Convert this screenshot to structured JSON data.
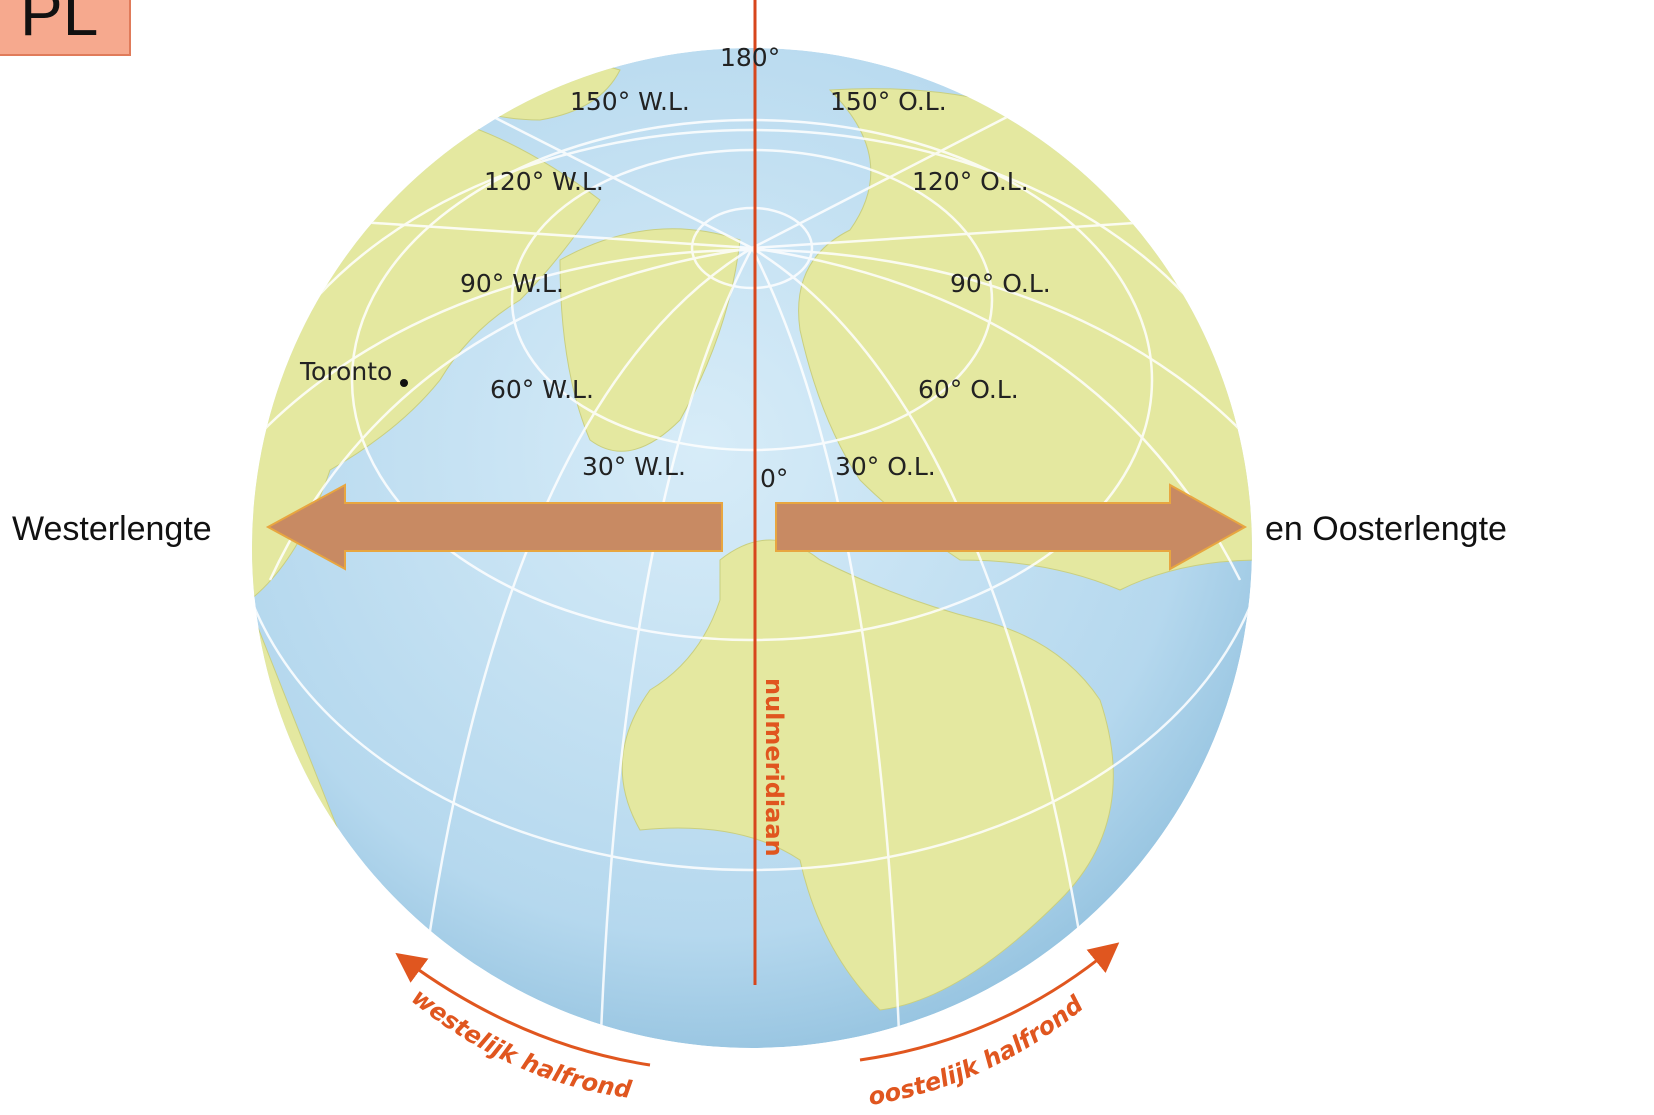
{
  "badge": "PL",
  "globe": {
    "labels": [
      "180°",
      "150° W.L.",
      "150° O.L.",
      "120° W.L.",
      "120° O.L.",
      "90° W.L.",
      "90° O.L.",
      "60° W.L.",
      "60° O.L.",
      "30° W.L.",
      "30° O.L.",
      "0°"
    ],
    "city": "Toronto",
    "prime_meridian": "nulmeridiaan",
    "west_hemisphere": "westelijk halfrond",
    "east_hemisphere": "oostelijk halfrond"
  },
  "arrows": {
    "left": "Westerlengte",
    "right": "en Oosterlengte"
  }
}
